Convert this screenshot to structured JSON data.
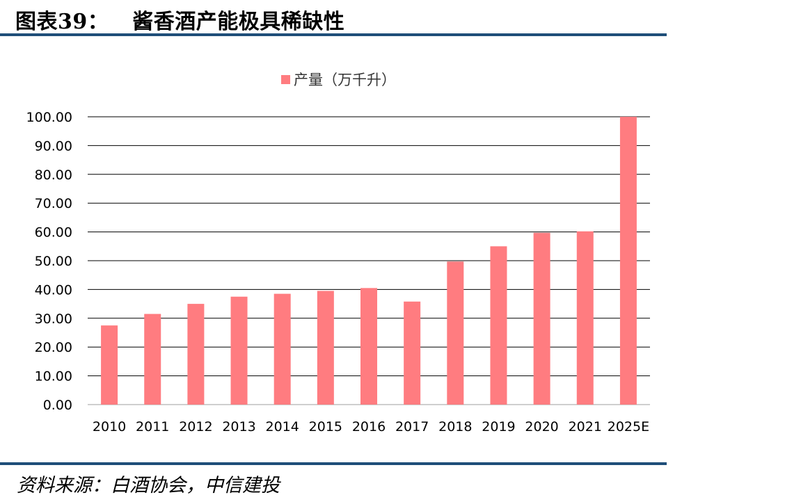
{
  "header": {
    "figure_number": "图表39：",
    "title": "酱香酒产能极具稀缺性"
  },
  "source_note": "资料来源：白酒协会，中信建投",
  "colors": {
    "bar": "#FF7C80",
    "rule": "#1F4E79",
    "grid": "#000000"
  },
  "chart_data": {
    "type": "bar",
    "categories": [
      "2010",
      "2011",
      "2012",
      "2013",
      "2014",
      "2015",
      "2016",
      "2017",
      "2018",
      "2019",
      "2020",
      "2021",
      "2025E"
    ],
    "series": [
      {
        "name": "产量（万千升）",
        "values": [
          27.5,
          31.5,
          35.0,
          37.5,
          38.5,
          39.5,
          40.5,
          35.8,
          49.7,
          55.0,
          59.7,
          60.2,
          100.0
        ]
      }
    ],
    "yticks": [
      "0.00",
      "10.00",
      "20.00",
      "30.00",
      "40.00",
      "50.00",
      "60.00",
      "70.00",
      "80.00",
      "90.00",
      "100.00"
    ],
    "ylim": [
      0,
      100
    ],
    "grid": true,
    "legend_position": "top"
  }
}
